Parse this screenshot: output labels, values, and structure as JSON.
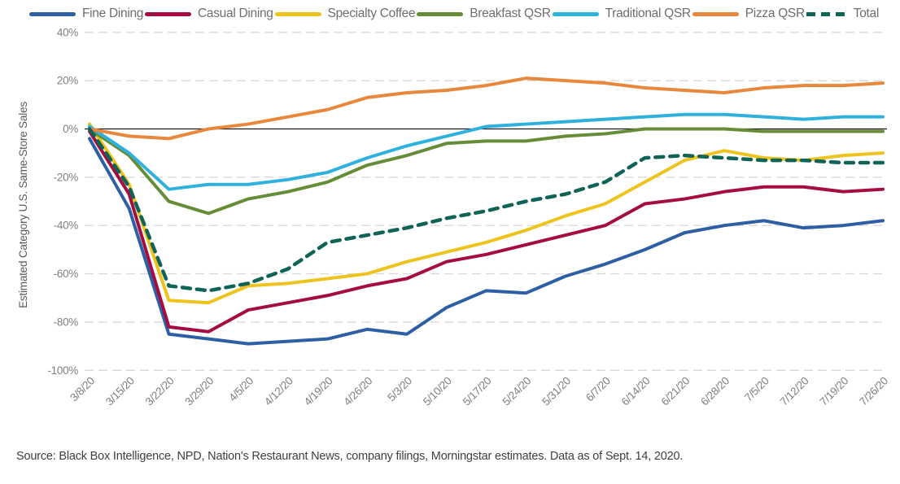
{
  "source": "Source: Black Box Intelligence, NPD, Nation's Restaurant News, company filings, Morningstar estimates. Data as of Sept. 14, 2020.",
  "axis": {
    "ylabel": "Estimated Category U.S. Same-Store Sales",
    "ytick_labels": [
      "40%",
      "20%",
      "0%",
      "-20%",
      "-40%",
      "-60%",
      "-80%",
      "-100%"
    ],
    "tick_color": "#7f7f7f",
    "gridline_color": "#d9d9d9",
    "zero_line_color": "#1a1a1a"
  },
  "chart_data": {
    "type": "line",
    "title": "",
    "xlabel": "",
    "ylabel": "Estimated Category U.S. Same-Store Sales",
    "ylim": [
      -100,
      40
    ],
    "yticks": [
      40,
      20,
      0,
      -20,
      -40,
      -60,
      -80,
      -100
    ],
    "grid": "horizontal-dashed",
    "legend_position": "top",
    "x": [
      "3/8/20",
      "3/15/20",
      "3/22/20",
      "3/29/20",
      "4/5/20",
      "4/12/20",
      "4/19/20",
      "4/26/20",
      "5/3/20",
      "5/10/20",
      "5/17/20",
      "5/24/20",
      "5/31/20",
      "6/7/20",
      "6/14/20",
      "6/21/20",
      "6/28/20",
      "7/5/20",
      "7/12/20",
      "7/19/20",
      "7/26/20"
    ],
    "series": [
      {
        "name": "Fine Dining",
        "color": "#2e5fa4",
        "style": "solid",
        "values": [
          -4,
          -33,
          -85,
          -87,
          -89,
          -88,
          -87,
          -83,
          -85,
          -74,
          -67,
          -68,
          -61,
          -56,
          -50,
          -43,
          -40,
          -38,
          -41,
          -40,
          -38
        ]
      },
      {
        "name": "Casual Dining",
        "color": "#a50d3f",
        "style": "solid",
        "values": [
          -1,
          -27,
          -82,
          -84,
          -75,
          -72,
          -69,
          -65,
          -62,
          -55,
          -52,
          -48,
          -44,
          -40,
          -31,
          -29,
          -26,
          -24,
          -24,
          -26,
          -25
        ]
      },
      {
        "name": "Specialty Coffee",
        "color": "#eec31e",
        "style": "solid",
        "values": [
          2,
          -23,
          -71,
          -72,
          -65,
          -64,
          -62,
          -60,
          -55,
          -51,
          -47,
          -42,
          -36,
          -31,
          -22,
          -13,
          -9,
          -12,
          -13,
          -11,
          -10
        ]
      },
      {
        "name": "Breakfast QSR",
        "color": "#678c38",
        "style": "solid",
        "values": [
          0,
          -11,
          -30,
          -35,
          -29,
          -26,
          -22,
          -15,
          -11,
          -6,
          -5,
          -5,
          -3,
          -2,
          0,
          0,
          0,
          -1,
          -1,
          -1,
          -1
        ]
      },
      {
        "name": "Traditional QSR",
        "color": "#2fb1dd",
        "style": "solid",
        "values": [
          1,
          -10,
          -25,
          -23,
          -23,
          -21,
          -18,
          -12,
          -7,
          -3,
          1,
          2,
          3,
          4,
          5,
          6,
          6,
          5,
          4,
          5,
          5
        ]
      },
      {
        "name": "Pizza QSR",
        "color": "#e8883c",
        "style": "solid",
        "values": [
          0,
          -3,
          -4,
          0,
          2,
          5,
          8,
          13,
          15,
          16,
          18,
          21,
          20,
          19,
          17,
          16,
          15,
          17,
          18,
          18,
          19
        ]
      },
      {
        "name": "Total",
        "color": "#106357",
        "style": "dashed",
        "values": [
          0,
          -24,
          -65,
          -67,
          -64,
          -58,
          -47,
          -44,
          -41,
          -37,
          -34,
          -30,
          -27,
          -22,
          -12,
          -11,
          -12,
          -13,
          -13,
          -14,
          -14
        ]
      }
    ]
  }
}
